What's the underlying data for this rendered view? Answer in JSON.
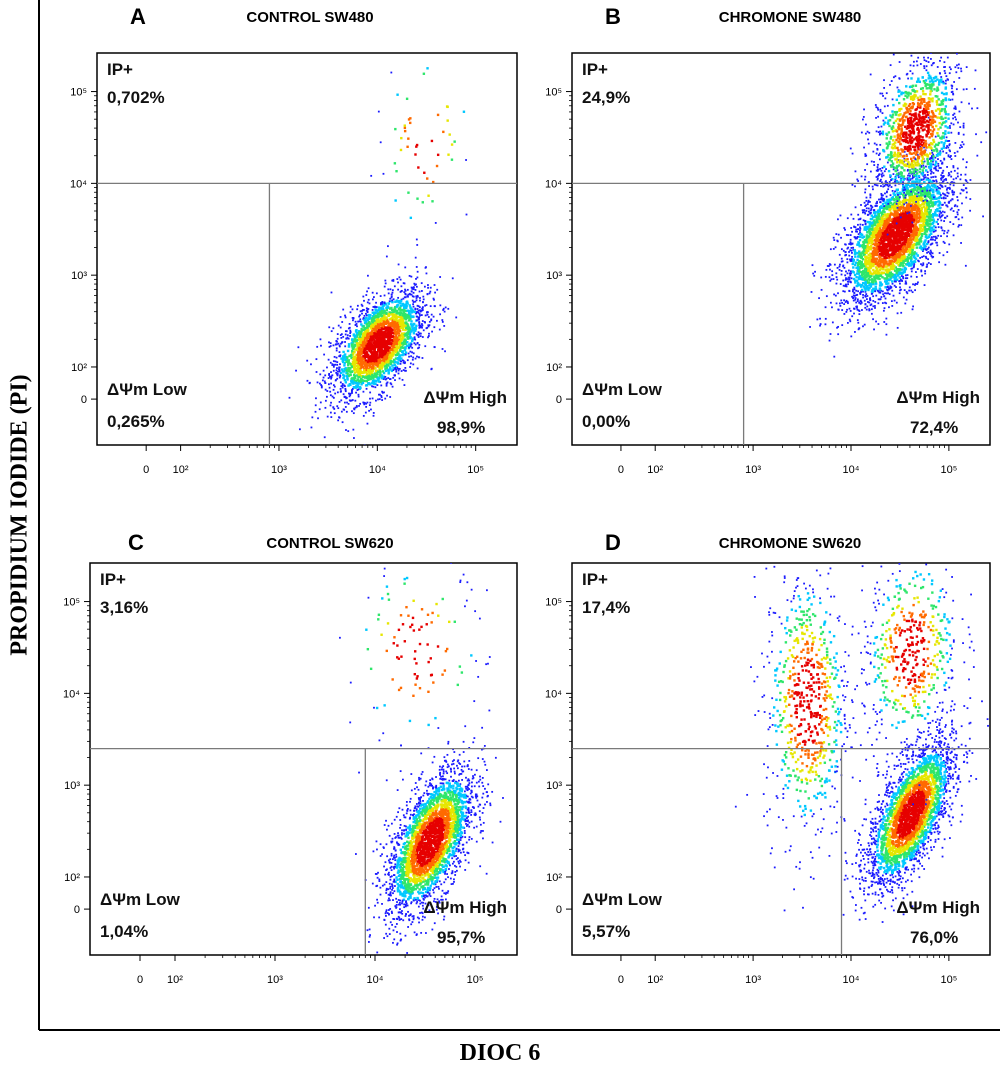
{
  "figure": {
    "ylabel": "PROPIDIUM IODIDE (PI)",
    "xlabel": "DIOC 6"
  },
  "colors": {
    "scale": [
      "#1a1aff",
      "#00c8ff",
      "#2ee66b",
      "#e6e600",
      "#ff6a00",
      "#e60000"
    ],
    "gate_line": "#7a7a7a",
    "frame": "#000000"
  },
  "chart_data": [
    {
      "type": "scatter",
      "panel_letter": "A",
      "title": "CONTROL SW480",
      "x_scale": "biexponential",
      "y_scale": "biexponential",
      "x_ticks": [
        "0",
        "10²",
        "10³",
        "10⁴",
        "10⁵"
      ],
      "y_ticks": [
        "10⁵",
        "10⁴",
        "10³",
        "10²",
        "0"
      ],
      "gates": {
        "x": 800,
        "y": 10000
      },
      "quadrants": [
        {
          "label": "IP+",
          "value": "0,702%"
        },
        {
          "label": "ΔΨm Low",
          "value": "0,265%"
        },
        {
          "label": "ΔΨm High",
          "value": "98,9%"
        }
      ],
      "populations": [
        {
          "xc": 10000,
          "yc": 180,
          "sx": 0.24,
          "sy": 0.3,
          "rho": 0.55,
          "n": 2400
        },
        {
          "xc": 30000,
          "yc": 30000,
          "sx": 0.25,
          "sy": 0.55,
          "rho": 0.1,
          "n": 60
        }
      ]
    },
    {
      "type": "scatter",
      "panel_letter": "B",
      "title": "CHROMONE SW480",
      "x_scale": "biexponential",
      "y_scale": "biexponential",
      "x_ticks": [
        "0",
        "10²",
        "10³",
        "10⁴",
        "10⁵"
      ],
      "y_ticks": [
        "10⁵",
        "10⁴",
        "10³",
        "10²",
        "0"
      ],
      "gates": {
        "x": 800,
        "y": 10000
      },
      "quadrants": [
        {
          "label": "IP+",
          "value": "24,9%"
        },
        {
          "label": "ΔΨm Low",
          "value": "0,00%"
        },
        {
          "label": "ΔΨm High",
          "value": "72,4%"
        }
      ],
      "populations": [
        {
          "xc": 28000,
          "yc": 2800,
          "sx": 0.28,
          "sy": 0.38,
          "rho": 0.6,
          "n": 3200
        },
        {
          "xc": 45000,
          "yc": 40000,
          "sx": 0.22,
          "sy": 0.38,
          "rho": 0.3,
          "n": 1100
        }
      ]
    },
    {
      "type": "scatter",
      "panel_letter": "C",
      "title": "CONTROL SW620",
      "x_scale": "biexponential",
      "y_scale": "biexponential",
      "x_ticks": [
        "0",
        "10²",
        "10³",
        "10⁴",
        "10⁵"
      ],
      "y_ticks": [
        "10⁵",
        "10⁴",
        "10³",
        "10²",
        "0"
      ],
      "gates": {
        "x": 8000,
        "y": 2500
      },
      "quadrants": [
        {
          "label": "IP+",
          "value": "3,16%"
        },
        {
          "label": "ΔΨm Low",
          "value": "1,04%"
        },
        {
          "label": "ΔΨm High",
          "value": "95,7%"
        }
      ],
      "populations": [
        {
          "xc": 35000,
          "yc": 250,
          "sx": 0.22,
          "sy": 0.4,
          "rho": 0.6,
          "n": 2600
        },
        {
          "xc": 25000,
          "yc": 30000,
          "sx": 0.35,
          "sy": 0.55,
          "rho": 0.0,
          "n": 120
        }
      ]
    },
    {
      "type": "scatter",
      "panel_letter": "D",
      "title": "CHROMONE SW620",
      "x_scale": "biexponential",
      "y_scale": "biexponential",
      "x_ticks": [
        "0",
        "10²",
        "10³",
        "10⁴",
        "10⁵"
      ],
      "y_ticks": [
        "10⁵",
        "10⁴",
        "10³",
        "10²",
        "0"
      ],
      "gates": {
        "x": 8000,
        "y": 2500
      },
      "quadrants": [
        {
          "label": "IP+",
          "value": "17,4%"
        },
        {
          "label": "ΔΨm Low",
          "value": "5,57%"
        },
        {
          "label": "ΔΨm High",
          "value": "76,0%"
        }
      ],
      "populations": [
        {
          "xc": 40000,
          "yc": 500,
          "sx": 0.22,
          "sy": 0.4,
          "rho": 0.65,
          "n": 2600
        },
        {
          "xc": 3500,
          "yc": 8000,
          "sx": 0.22,
          "sy": 0.75,
          "rho": 0.0,
          "n": 700
        },
        {
          "xc": 40000,
          "yc": 30000,
          "sx": 0.25,
          "sy": 0.55,
          "rho": 0.1,
          "n": 500
        }
      ]
    }
  ]
}
